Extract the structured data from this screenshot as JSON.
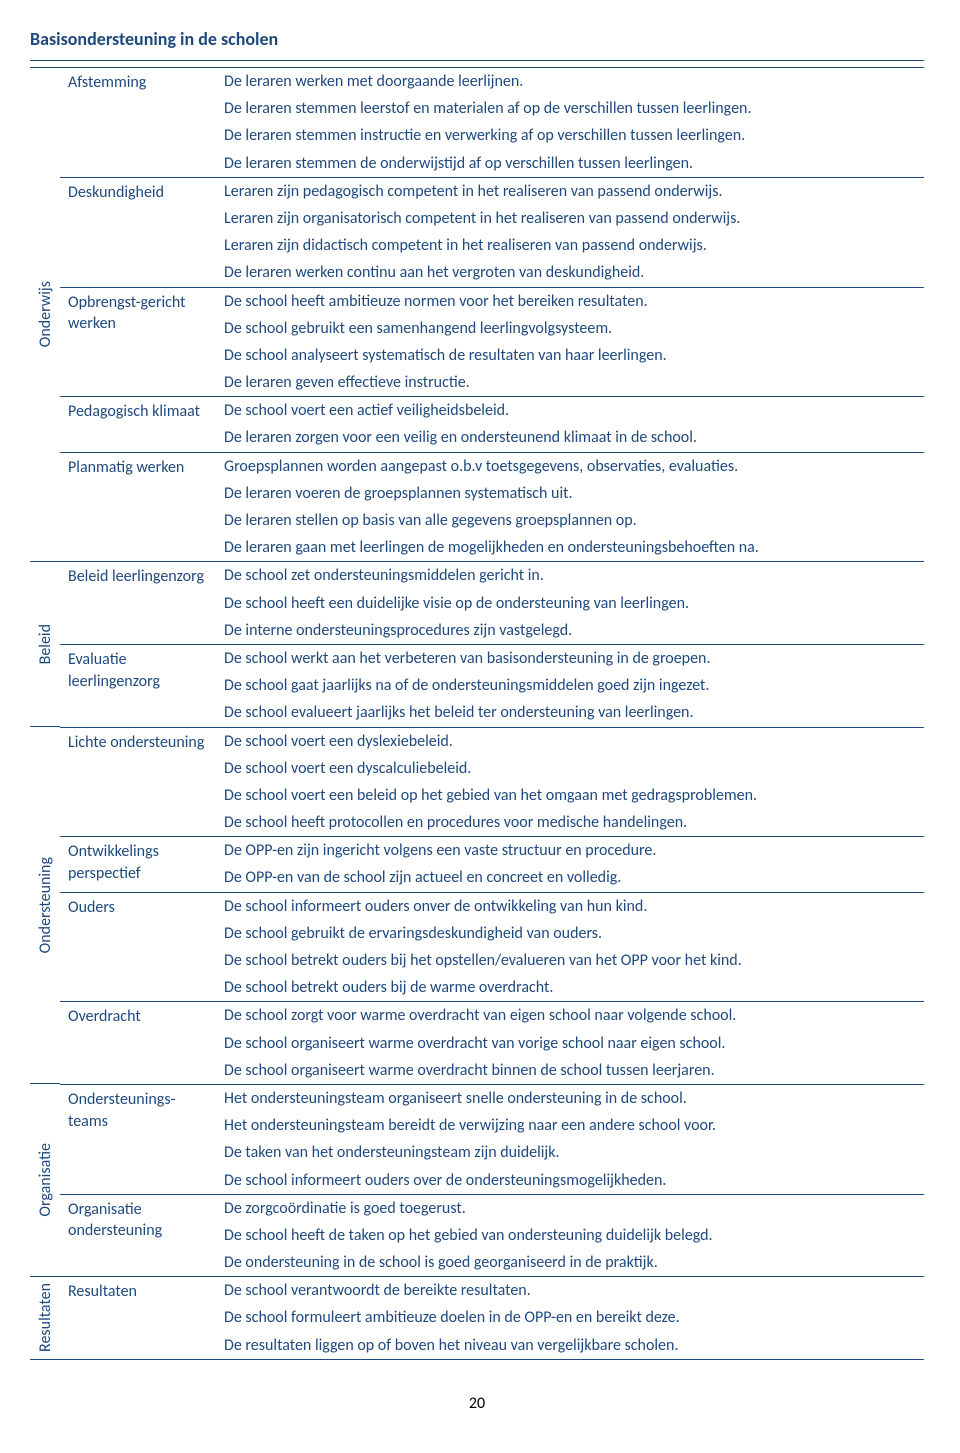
{
  "title": "Basisondersteuning in de scholen",
  "page_number": "20",
  "colors": {
    "primary": "#1f497d",
    "border": "#1f497d",
    "background": "#ffffff"
  },
  "typography": {
    "font_family": "Calibri",
    "title_size_pt": 13,
    "body_size_pt": 12,
    "title_weight": "bold"
  },
  "sections": [
    {
      "label": "Onderwijs",
      "groups": [
        {
          "label": "Afstemming",
          "descs": [
            "De leraren werken met doorgaande leerlijnen.",
            "De leraren stemmen leerstof en materialen af op de verschillen tussen leerlingen.",
            "De leraren stemmen instructie en verwerking af op verschillen tussen leerlingen.",
            "De leraren stemmen de onderwijstijd af op verschillen tussen leerlingen."
          ]
        },
        {
          "label": "Deskundigheid",
          "descs": [
            "Leraren zijn pedagogisch competent in het realiseren van passend onderwijs.",
            "Leraren zijn organisatorisch competent in het realiseren van passend onderwijs.",
            "Leraren zijn didactisch competent in het realiseren van passend onderwijs.",
            "De leraren werken continu aan het vergroten van deskundigheid."
          ]
        },
        {
          "label": "Opbrengst-gericht werken",
          "descs": [
            "De school heeft ambitieuze normen voor het bereiken resultaten.",
            "De school gebruikt een samenhangend leerlingvolgsysteem.",
            "De school analyseert systematisch de resultaten van haar leerlingen.",
            "De leraren geven effectieve instructie."
          ]
        },
        {
          "label": "Pedagogisch klimaat",
          "descs": [
            "De school voert een actief veiligheidsbeleid.",
            "De leraren zorgen voor een veilig en ondersteunend klimaat in de school."
          ]
        },
        {
          "label": "Planmatig werken",
          "descs": [
            "Groepsplannen worden aangepast o.b.v toetsgegevens, observaties, evaluaties.",
            "De leraren voeren de groepsplannen systematisch uit.",
            "De leraren stellen op basis van alle gegevens groepsplannen op.",
            "De leraren gaan met leerlingen de mogelijkheden en ondersteuningsbehoeften na."
          ]
        }
      ]
    },
    {
      "label": "Beleid",
      "groups": [
        {
          "label": "Beleid leerlingenzorg",
          "descs": [
            "De school zet ondersteuningsmiddelen gericht in.",
            "De school heeft een duidelijke visie op de ondersteuning van leerlingen.",
            "De interne ondersteuningsprocedures zijn vastgelegd."
          ]
        },
        {
          "label": "Evaluatie leerlingenzorg",
          "descs": [
            "De school werkt aan het verbeteren van basisondersteuning in de groepen.",
            "De school gaat jaarlijks na of de ondersteuningsmiddelen goed zijn ingezet.",
            "De school evalueert jaarlijks het beleid ter ondersteuning van leerlingen."
          ]
        }
      ]
    },
    {
      "label": "Ondersteuning",
      "groups": [
        {
          "label": "Lichte ondersteuning",
          "descs": [
            "De school voert een dyslexiebeleid.",
            "De school voert een dyscalculiebeleid.",
            "De school voert een beleid op het gebied van het omgaan met gedragsproblemen.",
            "De school heeft protocollen en procedures voor medische handelingen."
          ]
        },
        {
          "label": "Ontwikkelings perspectief",
          "descs": [
            "De OPP-en zijn ingericht volgens een vaste structuur en procedure.",
            "De OPP-en van de school zijn actueel en concreet en volledig."
          ]
        },
        {
          "label": "Ouders",
          "descs": [
            "De school informeert ouders onver de ontwikkeling van hun kind.",
            "De school gebruikt de ervaringsdeskundigheid van ouders.",
            "De school betrekt ouders bij het opstellen/evalueren van het OPP voor het kind.",
            "De school betrekt ouders bij de warme overdracht."
          ]
        },
        {
          "label": "Overdracht",
          "descs": [
            "De school zorgt voor warme overdracht van eigen school naar volgende school.",
            "De school organiseert warme overdracht van vorige school naar eigen school.",
            "De school organiseert warme overdracht binnen de school tussen leerjaren."
          ]
        }
      ]
    },
    {
      "label": "Organisatie",
      "groups": [
        {
          "label": "Ondersteunings-teams",
          "descs": [
            "Het ondersteuningsteam organiseert snelle ondersteuning in de school.",
            "Het ondersteuningsteam bereidt de verwijzing naar een andere school voor.",
            "De taken van het ondersteuningsteam zijn duidelijk.",
            "De school informeert ouders over de ondersteuningsmogelijkheden."
          ]
        },
        {
          "label": "Organisatie ondersteuning",
          "descs": [
            "De zorgcoördinatie is goed toegerust.",
            "De school heeft de taken op het gebied van ondersteuning duidelijk belegd.",
            "De ondersteuning in de school is goed georganiseerd in de praktijk."
          ]
        }
      ]
    },
    {
      "label": "Resultaten",
      "groups": [
        {
          "label": "Resultaten",
          "descs": [
            "De school verantwoordt de bereikte resultaten.",
            "De school formuleert ambitieuze doelen in de OPP-en en bereikt deze.",
            "De resultaten liggen op of boven het niveau van vergelijkbare scholen."
          ]
        }
      ]
    }
  ]
}
